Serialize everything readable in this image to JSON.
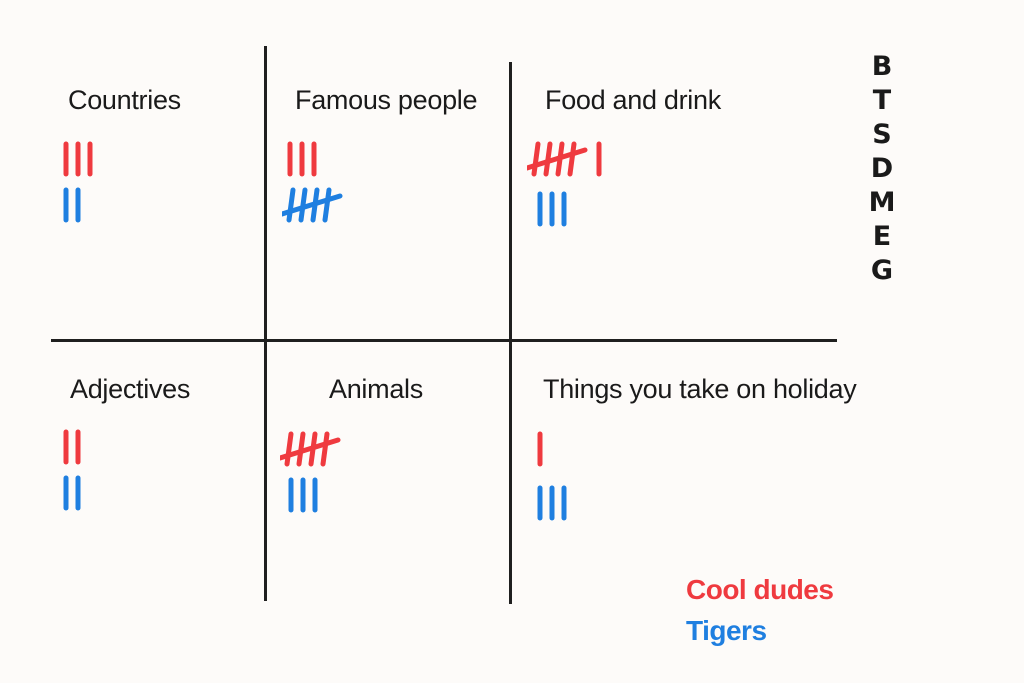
{
  "colors": {
    "team1": "#ef3a3f",
    "team2": "#1f7fe0",
    "ink": "#1f1f1f"
  },
  "categories": [
    {
      "label": "Countries",
      "tallies": [
        3,
        2
      ]
    },
    {
      "label": "Famous people",
      "tallies": [
        3,
        5
      ]
    },
    {
      "label": "Food and drink",
      "tallies": [
        6,
        3
      ]
    },
    {
      "label": "Adjectives",
      "tallies": [
        2,
        2
      ]
    },
    {
      "label": "Animals",
      "tallies": [
        5,
        3
      ]
    },
    {
      "label": "Things you take on holiday",
      "tallies": [
        1,
        3
      ]
    }
  ],
  "letters": [
    "B",
    "T",
    "S",
    "D",
    "M",
    "E",
    "G"
  ],
  "teams": [
    {
      "name": "Cool dudes"
    },
    {
      "name": "Tigers"
    }
  ]
}
